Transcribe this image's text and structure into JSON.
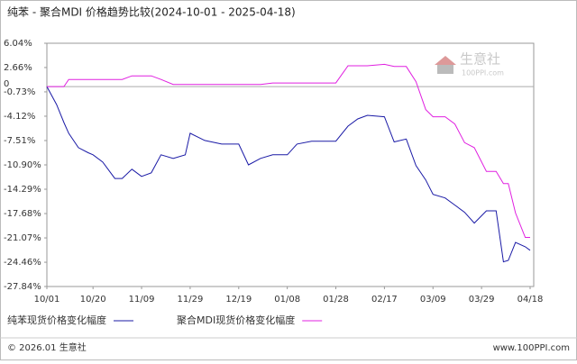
{
  "chart_data": {
    "type": "line",
    "title": "纯苯 - 聚合MDI 价格趋势比较(2024-10-01 - 2025-04-18)",
    "x": [
      "10/01",
      "10/05",
      "10/08",
      "10/10",
      "10/14",
      "10/18",
      "10/20",
      "10/24",
      "10/29",
      "11/01",
      "11/05",
      "11/09",
      "11/13",
      "11/17",
      "11/22",
      "11/27",
      "11/29",
      "12/05",
      "12/12",
      "12/19",
      "12/23",
      "12/28",
      "01/02",
      "01/08",
      "01/12",
      "01/18",
      "01/28",
      "02/02",
      "02/06",
      "02/10",
      "02/17",
      "02/21",
      "02/26",
      "03/02",
      "03/06",
      "03/09",
      "03/14",
      "03/18",
      "03/22",
      "03/26",
      "03/31",
      "04/04",
      "04/07",
      "04/09",
      "04/12",
      "04/16",
      "04/18"
    ],
    "series": [
      {
        "name": "纯苯现货价格变化幅度",
        "color": "#1a1aa6",
        "values": [
          0,
          -2.5,
          -5,
          -6.5,
          -8.5,
          -9.2,
          -9.5,
          -10.5,
          -12.8,
          -12.8,
          -11.5,
          -12.5,
          -12,
          -9.5,
          -10,
          -9.5,
          -6.5,
          -7.5,
          -8,
          -8,
          -10.9,
          -10,
          -9.5,
          -9.5,
          -8,
          -7.6,
          -7.6,
          -5.5,
          -4.5,
          -4,
          -4.2,
          -7.7,
          -7.3,
          -11,
          -13,
          -15,
          -15.5,
          -16.5,
          -17.5,
          -19,
          -17.3,
          -17.3,
          -24.4,
          -24.2,
          -21.7,
          -22.3,
          -22.8
        ]
      },
      {
        "name": "聚合MDI现货价格变化幅度",
        "color": "#e020e0",
        "values": [
          0,
          0,
          0,
          1,
          1,
          1,
          1,
          1,
          1,
          1,
          1.5,
          1.5,
          1.5,
          1.0,
          0.3,
          0.3,
          0.3,
          0.3,
          0.3,
          0.3,
          0.3,
          0.3,
          0.5,
          0.5,
          0.5,
          0.5,
          0.5,
          2.9,
          2.9,
          2.9,
          3.1,
          2.8,
          2.8,
          0.7,
          -3.2,
          -4.2,
          -4.2,
          -5.2,
          -7.8,
          -8.5,
          -11.8,
          -11.8,
          -13.5,
          -13.5,
          -17.6,
          -21,
          -21
        ]
      }
    ],
    "ylim": [
      -27.84,
      6.04
    ],
    "yticks": [
      {
        "value": 6.04,
        "label": "6.04%"
      },
      {
        "value": 2.66,
        "label": "2.66%"
      },
      {
        "value": -0.73,
        "label": "-0.73%"
      },
      {
        "value": -4.12,
        "label": "-4.12%"
      },
      {
        "value": -7.51,
        "label": "-7.51%"
      },
      {
        "value": -10.9,
        "label": "-10.90%"
      },
      {
        "value": -14.29,
        "label": "-14.29%"
      },
      {
        "value": -17.68,
        "label": "-17.68%"
      },
      {
        "value": -21.07,
        "label": "-21.07%"
      },
      {
        "value": -24.46,
        "label": "-24.46%"
      },
      {
        "value": -27.84,
        "label": "-27.84%"
      }
    ],
    "zero_line": 0,
    "xticks": [
      "10/01",
      "10/20",
      "11/09",
      "11/29",
      "12/19",
      "01/08",
      "01/28",
      "02/17",
      "03/09",
      "03/29",
      "04/18"
    ],
    "watermark": "生意社",
    "watermark_url": "100PPI.com",
    "footer_left": "© 2026.01 生意社",
    "footer_right": "www.100PPI.com"
  }
}
